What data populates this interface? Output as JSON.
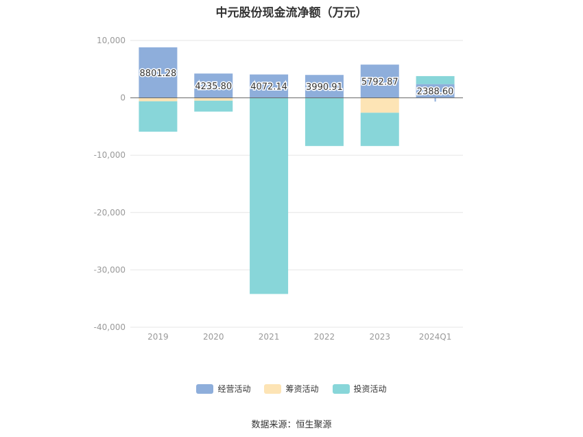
{
  "chart_data": {
    "type": "bar",
    "stacked": true,
    "title": "中元股份现金流净额（万元）",
    "categories": [
      "2019",
      "2020",
      "2021",
      "2022",
      "2023",
      "2024Q1"
    ],
    "yticks": [
      "10,000",
      "0",
      "-10,000",
      "-20,000",
      "-30,000",
      "-40,000"
    ],
    "ylim": [
      -40000,
      10000
    ],
    "grid": true,
    "legend_position": "bottom",
    "series": [
      {
        "name": "经营活动",
        "color": "#8eaedb",
        "values": [
          8801.28,
          4235.8,
          4072.14,
          3990.91,
          5792.87,
          2388.6
        ],
        "labels": [
          "8801.28",
          "4235.80",
          "4072.14",
          "3990.91",
          "5792.87",
          "2388.60"
        ]
      },
      {
        "name": "筹资活动",
        "color": "#fde4b5",
        "values": [
          -600,
          -500,
          0,
          0,
          -2600,
          0
        ]
      },
      {
        "name": "投资活动",
        "color": "#88d6d9",
        "values": [
          -5300,
          -1900,
          -34200,
          -8400,
          -5800,
          1400
        ]
      }
    ],
    "extra_marks": [
      {
        "category": "2024Q1",
        "value": -650,
        "color": "#8eaedb"
      }
    ]
  },
  "source": "数据来源：恒生聚源"
}
